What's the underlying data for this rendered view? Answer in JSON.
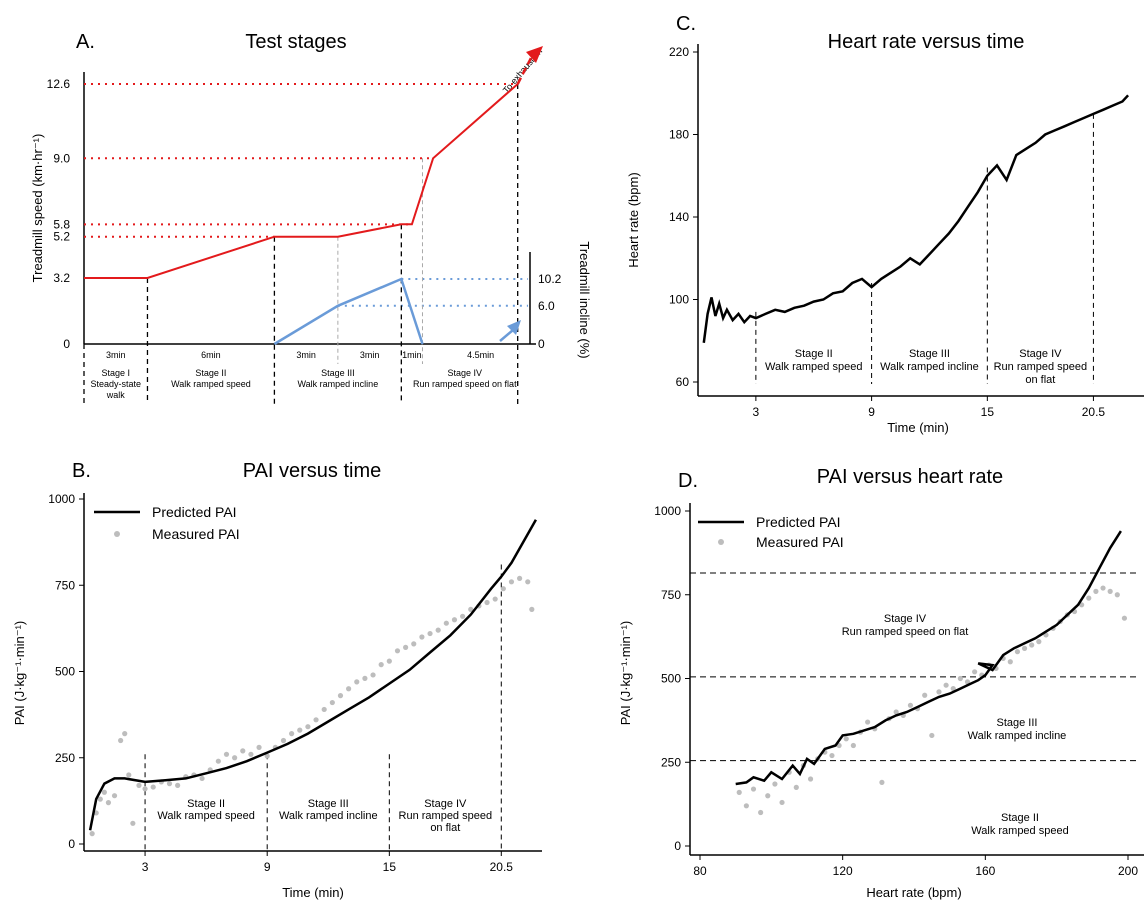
{
  "chart_data": [
    {
      "panel": "A.",
      "type": "line",
      "title": "Test stages",
      "ylabel": "Treadmill speed (km·hr⁻¹)",
      "y2label": "Treadmill incline (%)",
      "speed_ticks": [
        "12.6",
        "9.0",
        "5.8",
        "5.2",
        "3.2",
        "0"
      ],
      "incline_ticks": [
        "10.2",
        "6.0",
        "0"
      ],
      "durations": [
        "3min",
        "6min",
        "3min",
        "3min",
        "1min",
        "4.5min"
      ],
      "stage_labels": [
        [
          "Stage I",
          "Steady-state",
          "walk"
        ],
        [
          "Stage II",
          "Walk ramped speed"
        ],
        [
          "Stage III",
          "Walk ramped incline"
        ],
        [
          "Stage IV",
          "Run ramped speed on flat"
        ]
      ],
      "annotation": "To exhaustion",
      "speed_series": {
        "x": [
          0,
          3,
          9,
          12,
          15,
          15.5,
          16.5,
          20.5
        ],
        "y": [
          3.2,
          3.2,
          5.2,
          5.2,
          5.8,
          5.8,
          9.0,
          12.6
        ]
      },
      "incline_series": {
        "x": [
          9,
          12,
          15,
          16
        ],
        "y": [
          0,
          6.0,
          10.2,
          0
        ]
      },
      "colors": {
        "speed": "#e31a1c",
        "incline": "#6a9bd8"
      }
    },
    {
      "panel": "B.",
      "type": "scatter+line",
      "title": "PAI versus time",
      "xlabel": "Time (min)",
      "ylabel": "PAI (J·kg⁻¹·min⁻¹)",
      "xticks": [
        "3",
        "9",
        "15",
        "20.5"
      ],
      "yticks": [
        "0",
        "250",
        "500",
        "750",
        "1000"
      ],
      "xlim": [
        0,
        22.5
      ],
      "ylim": [
        0,
        1000
      ],
      "legend": [
        "Predicted PAI",
        "Measured PAI"
      ],
      "stage_labels": [
        [
          "Stage II",
          "Walk ramped speed"
        ],
        [
          "Stage III",
          "Walk ramped incline"
        ],
        [
          "Stage IV",
          "Run ramped speed",
          "on flat"
        ]
      ],
      "predicted": {
        "x": [
          0.3,
          0.6,
          1.0,
          1.5,
          2.0,
          3.0,
          4.0,
          5.0,
          6.0,
          7.0,
          8.0,
          9.0,
          10.0,
          11.0,
          12.0,
          13.0,
          14.0,
          15.0,
          16.0,
          17.0,
          18.0,
          19.0,
          20.0,
          20.5,
          21.0,
          22.2
        ],
        "y": [
          40,
          130,
          175,
          190,
          190,
          180,
          185,
          190,
          205,
          220,
          240,
          265,
          290,
          320,
          355,
          390,
          425,
          465,
          505,
          555,
          605,
          665,
          740,
          775,
          815,
          940
        ]
      },
      "measured": {
        "x": [
          0.4,
          0.6,
          0.8,
          1.0,
          1.2,
          1.5,
          1.8,
          2.0,
          2.2,
          2.4,
          2.7,
          3.0,
          3.4,
          3.8,
          4.2,
          4.6,
          5.0,
          5.4,
          5.8,
          6.2,
          6.6,
          7.0,
          7.4,
          7.8,
          8.2,
          8.6,
          9.0,
          9.4,
          9.8,
          10.2,
          10.6,
          11.0,
          11.4,
          11.8,
          12.2,
          12.6,
          13.0,
          13.4,
          13.8,
          14.2,
          14.6,
          15.0,
          15.4,
          15.8,
          16.2,
          16.6,
          17.0,
          17.4,
          17.8,
          18.2,
          18.6,
          19.0,
          19.4,
          19.8,
          20.2,
          20.6,
          21.0,
          21.4,
          21.8,
          22.0
        ],
        "y": [
          30,
          90,
          130,
          150,
          120,
          140,
          300,
          320,
          200,
          60,
          170,
          160,
          165,
          180,
          175,
          170,
          195,
          200,
          190,
          215,
          240,
          260,
          250,
          270,
          260,
          280,
          255,
          280,
          300,
          320,
          330,
          340,
          360,
          390,
          410,
          430,
          450,
          470,
          480,
          490,
          520,
          530,
          560,
          570,
          580,
          600,
          610,
          620,
          640,
          650,
          660,
          680,
          690,
          700,
          710,
          740,
          760,
          770,
          760,
          680
        ]
      },
      "colors": {
        "predicted": "#000000",
        "measured": "#bdbdbd"
      }
    },
    {
      "panel": "C.",
      "type": "line",
      "title": "Heart rate versus time",
      "xlabel": "Time (min)",
      "ylabel": "Heart rate (bpm)",
      "xticks": [
        "3",
        "9",
        "15",
        "20.5"
      ],
      "yticks": [
        "60",
        "100",
        "140",
        "180",
        "220"
      ],
      "xlim": [
        0,
        22.5
      ],
      "ylim": [
        60,
        220
      ],
      "stage_labels": [
        [
          "Stage II",
          "Walk ramped speed"
        ],
        [
          "Stage III",
          "Walk ramped incline"
        ],
        [
          "Stage IV",
          "Run ramped speed",
          "on flat"
        ]
      ],
      "series": {
        "x": [
          0.3,
          0.5,
          0.7,
          0.9,
          1.1,
          1.3,
          1.5,
          1.8,
          2.1,
          2.4,
          2.7,
          3.0,
          3.5,
          4.0,
          4.5,
          5.0,
          5.5,
          6.0,
          6.5,
          7.0,
          7.5,
          8.0,
          8.5,
          9.0,
          9.5,
          10.0,
          10.5,
          11.0,
          11.5,
          12.0,
          12.5,
          13.0,
          13.5,
          14.0,
          14.5,
          15.0,
          15.5,
          16.0,
          16.5,
          17.0,
          17.5,
          18.0,
          18.5,
          19.0,
          19.5,
          20.0,
          20.5,
          21.0,
          21.5,
          22.0,
          22.3
        ],
        "y": [
          79,
          93,
          101,
          92,
          98,
          91,
          95,
          90,
          93,
          89,
          92,
          91,
          93,
          95,
          94,
          96,
          97,
          99,
          100,
          103,
          104,
          108,
          110,
          106,
          110,
          113,
          116,
          120,
          117,
          122,
          127,
          132,
          138,
          145,
          152,
          160,
          165,
          158,
          170,
          173,
          176,
          180,
          182,
          184,
          186,
          188,
          190,
          192,
          194,
          196,
          199
        ]
      },
      "colors": {
        "line": "#000000"
      }
    },
    {
      "panel": "D.",
      "type": "scatter+line",
      "title": "PAI versus heart rate",
      "xlabel": "Heart rate (bpm)",
      "ylabel": "PAI (J·kg⁻¹·min⁻¹)",
      "xticks": [
        "80",
        "120",
        "160",
        "200"
      ],
      "yticks": [
        "0",
        "250",
        "500",
        "750",
        "1000"
      ],
      "xlim": [
        78,
        202
      ],
      "ylim": [
        0,
        1000
      ],
      "legend": [
        "Predicted PAI",
        "Measured PAI"
      ],
      "hlines": [
        255,
        505,
        815
      ],
      "stage_labels": [
        [
          "Stage IV",
          "Run ramped speed on flat"
        ],
        [
          "Stage III",
          "Walk ramped incline"
        ],
        [
          "Stage II",
          "Walk ramped speed"
        ]
      ],
      "predicted": {
        "x": [
          90,
          93,
          95,
          98,
          100,
          103,
          106,
          108,
          110,
          112,
          115,
          118,
          120,
          123,
          126,
          129,
          132,
          135,
          138,
          141,
          144,
          147,
          150,
          153,
          156,
          158,
          160,
          162,
          158,
          162,
          165,
          168,
          171,
          174,
          177,
          180,
          183,
          186,
          189,
          192,
          195,
          198
        ],
        "y": [
          185,
          190,
          205,
          195,
          220,
          200,
          240,
          215,
          260,
          245,
          290,
          300,
          330,
          335,
          345,
          355,
          375,
          390,
          400,
          415,
          430,
          445,
          455,
          470,
          485,
          495,
          510,
          540,
          545,
          525,
          570,
          590,
          605,
          620,
          640,
          660,
          690,
          720,
          770,
          830,
          890,
          940
        ]
      },
      "measured": {
        "x": [
          91,
          93,
          95,
          97,
          99,
          101,
          103,
          105,
          107,
          109,
          111,
          113,
          115,
          117,
          119,
          121,
          123,
          125,
          127,
          129,
          131,
          133,
          135,
          137,
          139,
          141,
          143,
          145,
          147,
          149,
          151,
          153,
          155,
          157,
          159,
          161,
          163,
          165,
          167,
          169,
          171,
          173,
          175,
          177,
          179,
          181,
          183,
          185,
          187,
          189,
          191,
          193,
          195,
          197,
          199
        ],
        "y": [
          160,
          120,
          170,
          100,
          150,
          185,
          130,
          220,
          175,
          240,
          200,
          260,
          280,
          270,
          300,
          320,
          300,
          340,
          370,
          350,
          190,
          380,
          400,
          390,
          420,
          410,
          450,
          330,
          460,
          480,
          470,
          500,
          490,
          520,
          510,
          540,
          530,
          560,
          550,
          580,
          590,
          600,
          610,
          630,
          650,
          670,
          690,
          700,
          720,
          740,
          760,
          770,
          760,
          750,
          680
        ]
      },
      "colors": {
        "predicted": "#000000",
        "measured": "#bdbdbd"
      }
    }
  ]
}
